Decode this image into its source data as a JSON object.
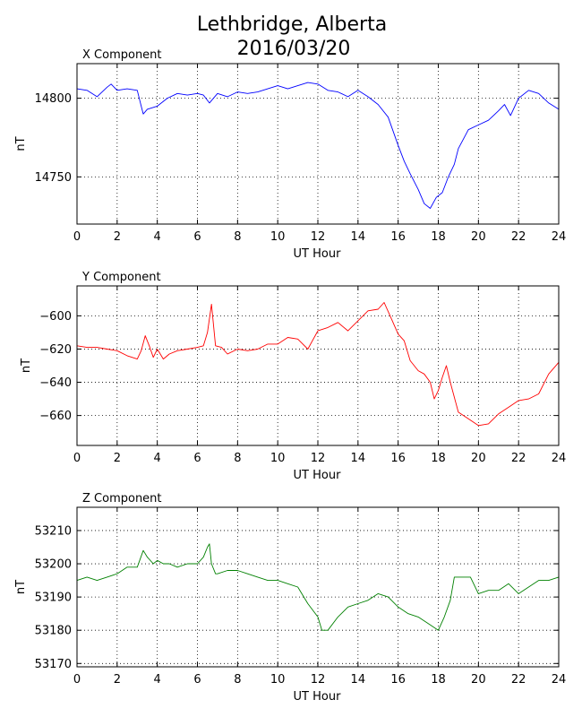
{
  "figure": {
    "title_line1": "Lethbridge, Alberta",
    "title_line2": "2016/03/20"
  },
  "chart_data": [
    {
      "type": "line",
      "title": "X Component",
      "xlabel": "UT Hour",
      "ylabel": "nT",
      "xlim": [
        0,
        24
      ],
      "ylim": [
        14720,
        14822
      ],
      "xticks": [
        0,
        2,
        4,
        6,
        8,
        10,
        12,
        14,
        16,
        18,
        20,
        22,
        24
      ],
      "yticks": [
        14750,
        14800
      ],
      "grid": true,
      "color": "#0000ff",
      "series": [
        {
          "x": [
            0,
            0.5,
            1,
            1.5,
            1.7,
            2,
            2.5,
            3,
            3.2,
            3.3,
            3.5,
            4,
            4.5,
            5,
            5.5,
            6,
            6.3,
            6.6,
            7,
            7.5,
            8,
            8.5,
            9,
            9.5,
            10,
            10.5,
            11,
            11.5,
            12,
            12.5,
            13,
            13.5,
            14,
            14.5,
            15,
            15.5,
            16,
            16.3,
            16.6,
            17,
            17.3,
            17.6,
            17.9,
            18.2,
            18.5,
            18.8,
            19,
            19.5,
            20,
            20.5,
            21,
            21.3,
            21.6,
            22,
            22.5,
            23,
            23.5,
            24
          ],
          "y": [
            14806,
            14805,
            14801,
            14807,
            14809,
            14805,
            14806,
            14805,
            14795,
            14790,
            14793,
            14795,
            14800,
            14803,
            14802,
            14803,
            14802,
            14797,
            14803,
            14801,
            14804,
            14803,
            14804,
            14806,
            14808,
            14806,
            14808,
            14810,
            14809,
            14805,
            14804,
            14801,
            14805,
            14801,
            14796,
            14788,
            14770,
            14760,
            14752,
            14742,
            14733,
            14730,
            14737,
            14740,
            14750,
            14758,
            14768,
            14780,
            14783,
            14786,
            14792,
            14796,
            14789,
            14800,
            14805,
            14803,
            14797,
            14793
          ]
        }
      ]
    },
    {
      "type": "line",
      "title": "Y Component",
      "xlabel": "UT Hour",
      "ylabel": "nT",
      "xlim": [
        0,
        24
      ],
      "ylim": [
        -678,
        -582
      ],
      "xticks": [
        0,
        2,
        4,
        6,
        8,
        10,
        12,
        14,
        16,
        18,
        20,
        22,
        24
      ],
      "yticks": [
        -660,
        -640,
        -620,
        -600
      ],
      "grid": true,
      "color": "#ff0000",
      "series": [
        {
          "x": [
            0,
            0.5,
            1,
            1.5,
            2,
            2.5,
            3,
            3.2,
            3.4,
            3.6,
            3.8,
            4,
            4.3,
            4.6,
            5,
            5.5,
            6,
            6.3,
            6.5,
            6.7,
            6.9,
            7.2,
            7.5,
            8,
            8.5,
            9,
            9.5,
            10,
            10.5,
            11,
            11.5,
            12,
            12.5,
            13,
            13.5,
            14,
            14.5,
            15,
            15.3,
            15.6,
            16,
            16.3,
            16.6,
            17,
            17.3,
            17.6,
            17.8,
            18,
            18.2,
            18.4,
            18.6,
            19,
            19.5,
            20,
            20.5,
            21,
            21.5,
            22,
            22.5,
            23,
            23.5,
            24
          ],
          "y": [
            -618,
            -619,
            -619,
            -620,
            -621,
            -624,
            -626,
            -621,
            -612,
            -618,
            -625,
            -620,
            -626,
            -623,
            -621,
            -620,
            -619,
            -618,
            -610,
            -593,
            -618,
            -619,
            -623,
            -620,
            -621,
            -620,
            -617,
            -617,
            -613,
            -614,
            -620,
            -609,
            -607,
            -604,
            -609,
            -603,
            -597,
            -596,
            -592,
            -600,
            -611,
            -615,
            -627,
            -633,
            -635,
            -640,
            -650,
            -645,
            -637,
            -630,
            -640,
            -658,
            -662,
            -666,
            -665,
            -659,
            -655,
            -651,
            -650,
            -647,
            -635,
            -628
          ]
        }
      ]
    },
    {
      "type": "line",
      "title": "Z Component",
      "xlabel": "UT Hour",
      "ylabel": "nT",
      "xlim": [
        0,
        24
      ],
      "ylim": [
        53169,
        53217
      ],
      "xticks": [
        0,
        2,
        4,
        6,
        8,
        10,
        12,
        14,
        16,
        18,
        20,
        22,
        24
      ],
      "yticks": [
        53170,
        53180,
        53190,
        53200,
        53210
      ],
      "grid": true,
      "color": "#008000",
      "series": [
        {
          "x": [
            0,
            0.5,
            1,
            1.5,
            2,
            2.5,
            3,
            3.3,
            3.5,
            3.8,
            4,
            4.3,
            4.6,
            5,
            5.5,
            6,
            6.3,
            6.5,
            6.6,
            6.7,
            6.9,
            7,
            7.5,
            8,
            8.5,
            9,
            9.5,
            10,
            10.5,
            11,
            11.5,
            12,
            12.2,
            12.5,
            13,
            13.5,
            14,
            14.5,
            15,
            15.5,
            16,
            16.5,
            17,
            17.5,
            18,
            18.3,
            18.6,
            18.8,
            19.2,
            19.6,
            20,
            20.5,
            21,
            21.5,
            22,
            22.5,
            23,
            23.5,
            24
          ],
          "y": [
            53195,
            53196,
            53195,
            53196,
            53197,
            53199,
            53199,
            53204,
            53202,
            53200,
            53201,
            53200,
            53200,
            53199,
            53200,
            53200,
            53202,
            53205,
            53206,
            53200,
            53197,
            53197,
            53198,
            53198,
            53197,
            53196,
            53195,
            53195,
            53194,
            53193,
            53188,
            53184,
            53180,
            53180,
            53184,
            53187,
            53188,
            53189,
            53191,
            53190,
            53187,
            53185,
            53184,
            53182,
            53180,
            53184,
            53189,
            53196,
            53196,
            53196,
            53191,
            53192,
            53192,
            53194,
            53191,
            53193,
            53195,
            53195,
            53196
          ]
        }
      ]
    }
  ]
}
